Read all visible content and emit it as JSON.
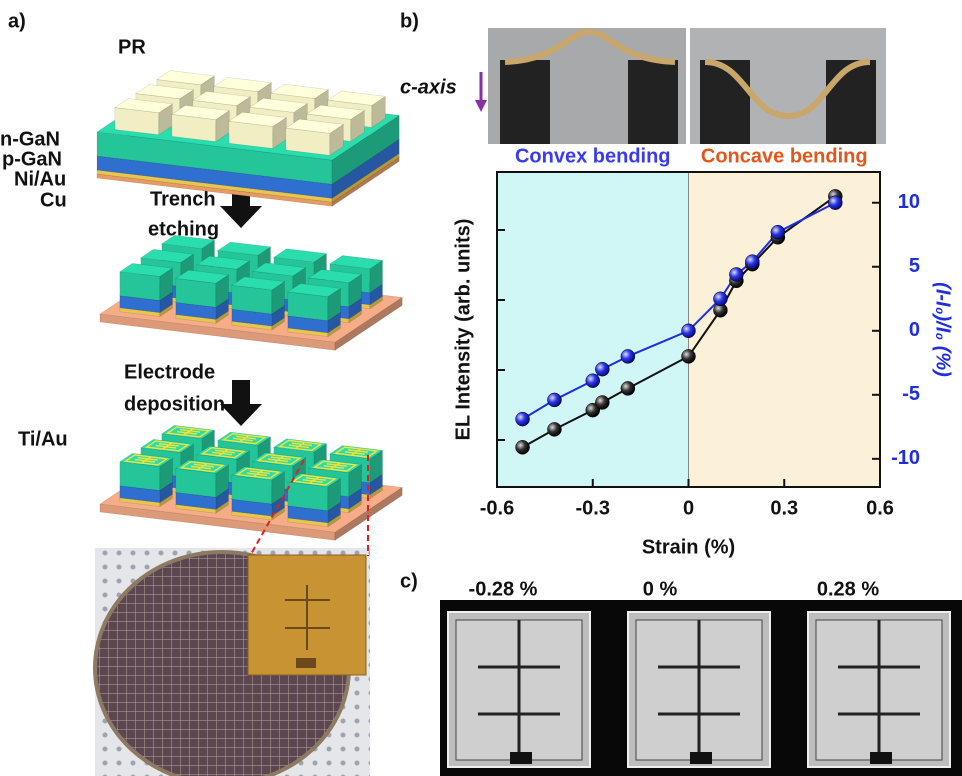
{
  "panel_a": {
    "label": "a)",
    "texts": [
      "PR",
      "n-GaN",
      "p-GaN",
      "Ni/Au",
      "Cu",
      "Trench",
      "etching",
      "Electrode",
      "deposition",
      "Ti/Au"
    ]
  },
  "panel_b": {
    "label": "b)",
    "axis_note": "c-axis"
  },
  "panel_c": {
    "label": "c)",
    "strains": [
      "-0.28 %",
      "0 %",
      "0.28 %"
    ]
  },
  "chart_data": {
    "type": "line",
    "xlabel": "Strain (%)",
    "ylabel": "EL Intensity (arb. units)",
    "y2label": "(I-I₀)/I₀ (%)",
    "regions": [
      {
        "label": "Convex bending",
        "color": "#3a3af0",
        "fill": "#d0f6f6",
        "xrange": [
          -0.6,
          0
        ]
      },
      {
        "label": "Concave bending",
        "color": "#e2571c",
        "fill": "#fbf0d8",
        "xrange": [
          0,
          0.6
        ]
      }
    ],
    "x": [
      -0.52,
      -0.42,
      -0.3,
      -0.27,
      -0.19,
      0,
      0.1,
      0.15,
      0.2,
      0.28,
      0.46
    ],
    "series": [
      {
        "color": "#111111",
        "axis": "y",
        "values": [
          -9.1,
          -7.7,
          -6.2,
          -5.6,
          -4.5,
          -2.0,
          1.6,
          3.9,
          5.2,
          7.3,
          10.5
        ]
      },
      {
        "color": "#1f2ee0",
        "axis": "y2",
        "values": [
          -6.9,
          -5.4,
          -3.9,
          -3.0,
          -2.0,
          0,
          2.5,
          4.4,
          5.4,
          7.7,
          10.0
        ]
      }
    ],
    "xlim": [
      -0.6,
      0.6
    ],
    "xticks": [
      -0.6,
      -0.3,
      0,
      0.3,
      0.6
    ],
    "ylim": [
      -12.2,
      12.4
    ],
    "y2lim": [
      -12.2,
      12.4
    ],
    "y2ticks": [
      -10,
      -5,
      0,
      5,
      10
    ]
  }
}
